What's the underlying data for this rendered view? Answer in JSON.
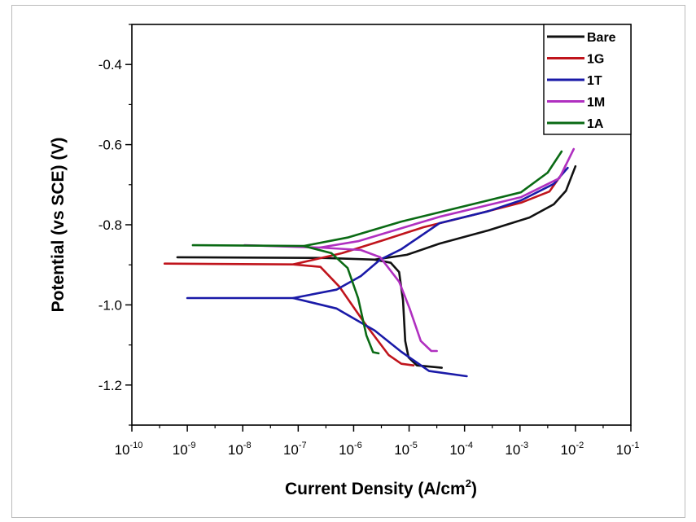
{
  "chart_data": {
    "type": "line",
    "title": "",
    "xlabel": "Current Density (A/cm²)",
    "xlabel_main": "Current Density (A/cm",
    "xlabel_sup": "2",
    "xlabel_end": ")",
    "ylabel": "Potential (vs SCE) (V)",
    "xscale": "log",
    "xlim_log10": [
      -10,
      -1
    ],
    "ylim": [
      -1.3,
      -0.3
    ],
    "x_ticks_log10": [
      -10,
      -9,
      -8,
      -7,
      -6,
      -5,
      -4,
      -3,
      -2,
      -1
    ],
    "x_tick_labels": [
      {
        "base": "10",
        "exp": "-10"
      },
      {
        "base": "10",
        "exp": "-9"
      },
      {
        "base": "10",
        "exp": "-8"
      },
      {
        "base": "10",
        "exp": "-7"
      },
      {
        "base": "10",
        "exp": "-6"
      },
      {
        "base": "10",
        "exp": "-5"
      },
      {
        "base": "10",
        "exp": "-4"
      },
      {
        "base": "10",
        "exp": "-3"
      },
      {
        "base": "10",
        "exp": "-2"
      },
      {
        "base": "10",
        "exp": "-1"
      }
    ],
    "y_ticks": [
      -1.2,
      -1.0,
      -0.8,
      -0.6,
      -0.4
    ],
    "y_tick_labels": [
      "-1.2",
      "-1.0",
      "-0.8",
      "-0.6",
      "-0.4"
    ],
    "grid": false,
    "legend_position": "top-right",
    "series": [
      {
        "name": "Bare",
        "color": "#111111",
        "cathodic": [
          [
            -9.18,
            -0.881
          ],
          [
            -6.51,
            -0.883
          ],
          [
            -5.62,
            -0.887
          ],
          [
            -5.33,
            -0.895
          ],
          [
            -5.18,
            -0.918
          ],
          [
            -5.11,
            -0.989
          ],
          [
            -5.07,
            -1.09
          ],
          [
            -5.01,
            -1.131
          ],
          [
            -4.86,
            -1.151
          ],
          [
            -4.41,
            -1.157
          ]
        ],
        "anodic": [
          [
            -5.62,
            -0.887
          ],
          [
            -5.04,
            -0.875
          ],
          [
            -4.45,
            -0.847
          ],
          [
            -3.57,
            -0.814
          ],
          [
            -2.83,
            -0.782
          ],
          [
            -2.39,
            -0.749
          ],
          [
            -2.17,
            -0.715
          ],
          [
            -2.0,
            -0.654
          ]
        ]
      },
      {
        "name": "1G",
        "color": "#c0141c",
        "cathodic": [
          [
            -9.41,
            -0.897
          ],
          [
            -7.09,
            -0.899
          ],
          [
            -6.6,
            -0.905
          ],
          [
            -6.26,
            -0.954
          ],
          [
            -5.81,
            -1.044
          ],
          [
            -5.37,
            -1.125
          ],
          [
            -5.14,
            -1.147
          ],
          [
            -4.92,
            -1.151
          ]
        ],
        "anodic": [
          [
            -7.09,
            -0.899
          ],
          [
            -6.21,
            -0.871
          ],
          [
            -5.48,
            -0.839
          ],
          [
            -4.74,
            -0.806
          ],
          [
            -3.86,
            -0.776
          ],
          [
            -2.98,
            -0.745
          ],
          [
            -2.47,
            -0.717
          ],
          [
            -2.25,
            -0.674
          ],
          [
            -2.17,
            -0.65
          ]
        ]
      },
      {
        "name": "1T",
        "color": "#1a1aa8",
        "cathodic": [
          [
            -9.0,
            -0.983
          ],
          [
            -7.09,
            -0.983
          ],
          [
            -6.31,
            -1.009
          ],
          [
            -5.62,
            -1.064
          ],
          [
            -5.14,
            -1.117
          ],
          [
            -4.64,
            -1.165
          ],
          [
            -3.96,
            -1.178
          ]
        ],
        "anodic": [
          [
            -7.09,
            -0.983
          ],
          [
            -6.31,
            -0.962
          ],
          [
            -5.87,
            -0.928
          ],
          [
            -5.52,
            -0.887
          ],
          [
            -5.14,
            -0.861
          ],
          [
            -4.45,
            -0.796
          ],
          [
            -3.57,
            -0.766
          ],
          [
            -2.98,
            -0.739
          ],
          [
            -2.39,
            -0.698
          ],
          [
            -2.14,
            -0.658
          ]
        ]
      },
      {
        "name": "1M",
        "color": "#b030c0",
        "cathodic": [
          [
            -7.97,
            -0.851
          ],
          [
            -6.61,
            -0.857
          ],
          [
            -5.87,
            -0.863
          ],
          [
            -5.52,
            -0.881
          ],
          [
            -5.18,
            -0.942
          ],
          [
            -4.99,
            -1.009
          ],
          [
            -4.79,
            -1.09
          ],
          [
            -4.6,
            -1.115
          ],
          [
            -4.5,
            -1.115
          ]
        ],
        "anodic": [
          [
            -6.61,
            -0.857
          ],
          [
            -5.92,
            -0.841
          ],
          [
            -4.45,
            -0.78
          ],
          [
            -2.98,
            -0.731
          ],
          [
            -2.29,
            -0.684
          ],
          [
            -2.03,
            -0.611
          ]
        ]
      },
      {
        "name": "1A",
        "color": "#0a6a14",
        "cathodic": [
          [
            -8.9,
            -0.851
          ],
          [
            -6.9,
            -0.853
          ],
          [
            -6.4,
            -0.871
          ],
          [
            -6.11,
            -0.908
          ],
          [
            -5.92,
            -0.983
          ],
          [
            -5.77,
            -1.076
          ],
          [
            -5.65,
            -1.118
          ],
          [
            -5.55,
            -1.121
          ]
        ],
        "anodic": [
          [
            -6.9,
            -0.853
          ],
          [
            -6.11,
            -0.832
          ],
          [
            -5.14,
            -0.792
          ],
          [
            -3.57,
            -0.739
          ],
          [
            -2.98,
            -0.719
          ],
          [
            -2.5,
            -0.67
          ],
          [
            -2.25,
            -0.617
          ]
        ]
      }
    ]
  }
}
